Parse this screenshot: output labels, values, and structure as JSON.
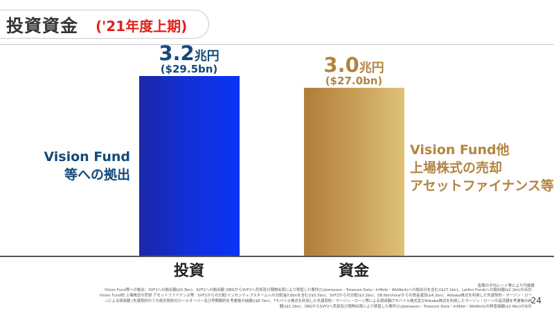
{
  "header": {
    "title": "投資資金",
    "subtitle": "('21年度上期)"
  },
  "chart_data": {
    "type": "bar",
    "categories": [
      "投資",
      "資金"
    ],
    "values": [
      3.2,
      3.0
    ],
    "ylim": [
      0,
      3.6
    ],
    "grid": false,
    "colors": [
      "#1330d8",
      "#caa159"
    ],
    "data_labels": [
      {
        "value": "3.2",
        "unit": "兆円",
        "sub": "($29.5bn)"
      },
      {
        "value": "3.0",
        "unit": "兆円",
        "sub": "($27.0bn)"
      }
    ],
    "annotations": [
      {
        "lines": [
          "Vision Fund",
          "等への拠出"
        ]
      },
      {
        "lines": [
          "Vision Fund他",
          "上場株式の売却",
          "アセットファイナンス等"
        ]
      }
    ]
  },
  "footer": {
    "note_right": "各期の平均レート等により円換算",
    "notes": [
      "Vision Fund等への拠出：SVF1への拠出額($0.3bn)、SVF2への拠出額 (SBGからSVF2へ売却及び現物出資により移管した案件(Cybereason・Treasure Data・InMobi・WeWork)への拠出分を含む)($27.1bn)、LatAm Fundsへの拠出額($2.1bn)の合計",
      "Vision Fund他 上場株式の売却 アセットファイナンス等：SVF1からの分配(インセンティブスキームへの分配金0.8bnを含む)($5.5bn)、SVF2からの分配($3.2bn)、SB Northstarからの資金還流($4.2bn)、Alibaba株式を利用した先渡契約・マージン・ロー",
      "ンによる調達額 (先渡契約のうち既存契約のロールオーバー及び早期解約を考慮後の純額)($8.7bn)、Tモバイル株式を利用した先渡契約・マージン・ローン等による調達額(Tモバイル株式及びAlibaba株式を利用したマージン・ローンの返済額を考慮後の純",
      "額)($1.3bn)、SBGからSVF2へ売却及び現物出資により移管した案件(Cybereason・Treasure Data・InMobi・WeWork)の移管価額($3.9bn)の合計"
    ],
    "page_number": "24"
  }
}
